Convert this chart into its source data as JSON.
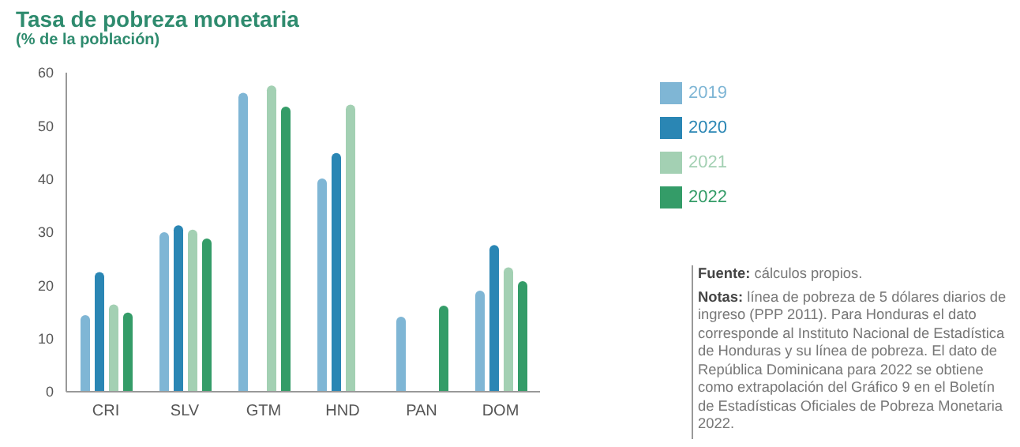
{
  "chart_data": {
    "type": "bar",
    "title": "Tasa de pobreza monetaria",
    "subtitle": "(% de la población)",
    "categories": [
      "CRI",
      "SLV",
      "GTM",
      "HND",
      "PAN",
      "DOM"
    ],
    "series": [
      {
        "name": "2019",
        "color": "#7fb6d5",
        "values": [
          14.4,
          30.0,
          56.2,
          40.1,
          14.1,
          19.0
        ]
      },
      {
        "name": "2020",
        "color": "#2a86b4",
        "values": [
          22.5,
          31.3,
          null,
          44.9,
          null,
          27.6
        ]
      },
      {
        "name": "2021",
        "color": "#a3d0b3",
        "values": [
          16.4,
          30.5,
          57.6,
          54.0,
          null,
          23.4
        ]
      },
      {
        "name": "2022",
        "color": "#349c68",
        "values": [
          14.9,
          28.8,
          53.6,
          null,
          16.2,
          20.8
        ]
      }
    ],
    "ylim": [
      0,
      60
    ],
    "yticks": [
      0,
      10,
      20,
      30,
      40,
      50,
      60
    ],
    "grid": false,
    "legend": "right",
    "annotations": [
      "Fuente: cálculos propios.",
      "Notas: línea de pobreza de 5 dólares diarios de ingreso (PPP 2011). Para Honduras el dato corresponde al Instituto Nacional de Estadística de Honduras y su línea de pobreza. El dato de República Dominicana para 2022 se obtiene como extrapolación del Gráfico 9 en el Boletín de Estadísticas Oficiales de Pobreza Monetaria 2022."
    ]
  }
}
